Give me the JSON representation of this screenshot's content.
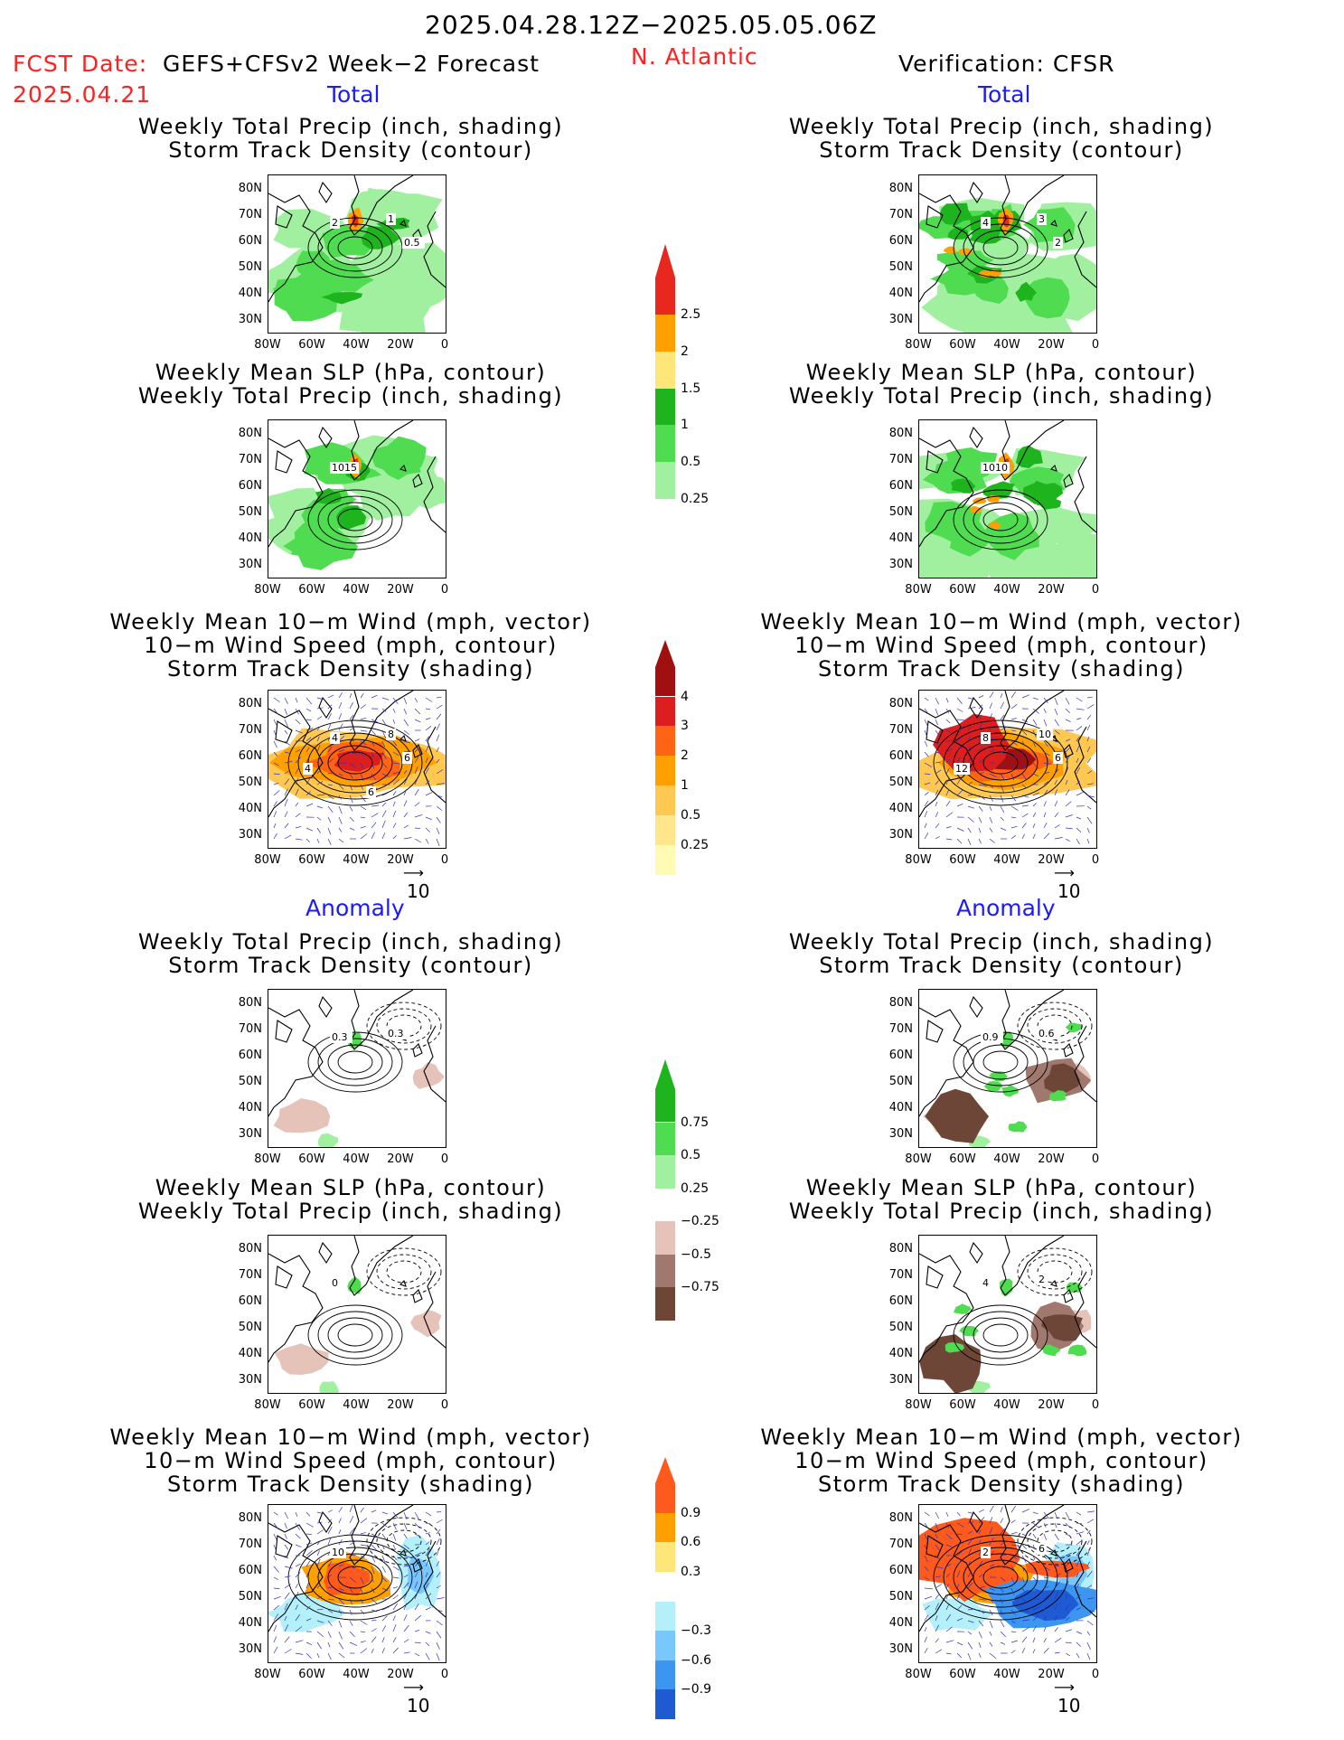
{
  "header": {
    "date_range": "2025.04.28.12Z−2025.05.05.06Z",
    "fcst_label": "FCST Date:",
    "fcst_date": "2025.04.21",
    "model": "GEFS+CFSv2 Week−2 Forecast",
    "region": "N. Atlantic",
    "verification": "Verification: CFSR"
  },
  "sections": {
    "total": "Total",
    "anomaly": "Anomaly"
  },
  "titles": {
    "precip": [
      "Weekly Total Precip (inch, shading)",
      "Storm Track Density (contour)"
    ],
    "slp": [
      "Weekly Mean SLP (hPa, contour)",
      "Weekly Total Precip (inch, shading)"
    ],
    "wind": [
      "Weekly Mean 10−m Wind (mph, vector)",
      "10−m Wind Speed (mph, contour)",
      "Storm Track Density (shading)"
    ]
  },
  "axes": {
    "lat": [
      "80N",
      "70N",
      "60N",
      "50N",
      "40N",
      "30N"
    ],
    "lon": [
      "80W",
      "60W",
      "40W",
      "20W",
      "0"
    ]
  },
  "vector_ref": "10",
  "contour_labels": {
    "fc_precip": [
      "2",
      "1",
      "0.5"
    ],
    "vf_precip": [
      "4",
      "3",
      "2"
    ],
    "fc_slp": [
      "1015"
    ],
    "vf_slp": [
      "1010"
    ],
    "fc_wind": [
      "4",
      "8",
      "6",
      "4",
      "6"
    ],
    "vf_wind": [
      "8",
      "10",
      "6",
      "12"
    ],
    "fc_precip_anom": [
      "0.3",
      "0.3"
    ],
    "vf_precip_anom": [
      "0.9",
      "0.6"
    ],
    "fc_slp_anom": [
      "0"
    ],
    "vf_slp_anom": [
      "4",
      "2"
    ],
    "fc_wind_anom": [
      "10"
    ],
    "vf_wind_anom": [
      "2",
      "6"
    ]
  },
  "colorbars": {
    "precip_total": {
      "labels": [
        "2.5",
        "2",
        "1.5",
        "1",
        "0.5",
        "0.25"
      ],
      "colors": [
        "#e8281e",
        "#ffa000",
        "#ffe678",
        "#1eb41e",
        "#50dc50",
        "#a0f0a0"
      ]
    },
    "storm_total": {
      "labels": [
        "4",
        "3",
        "2",
        "1",
        "0.5",
        "0.25"
      ],
      "colors": [
        "#a01010",
        "#dc1e1e",
        "#ff6414",
        "#ffa000",
        "#ffc850",
        "#ffe68c",
        "#fffab4"
      ]
    },
    "precip_anom": {
      "labels": [
        "0.75",
        "0.5",
        "0.25",
        "−0.25",
        "−0.5",
        "−0.75"
      ],
      "colors": [
        "#1eb41e",
        "#50dc50",
        "#a0f0a0",
        "#ffffff",
        "#e6c3b9",
        "#a0786e",
        "#6e4637"
      ]
    },
    "storm_anom": {
      "labels": [
        "0.9",
        "0.6",
        "0.3",
        "−0.3",
        "−0.6",
        "−0.9"
      ],
      "colors": [
        "#ff5a1e",
        "#ffa000",
        "#ffe678",
        "#ffffff",
        "#b4f0fa",
        "#78c8ff",
        "#3c96f0",
        "#1e5ad2"
      ]
    }
  }
}
